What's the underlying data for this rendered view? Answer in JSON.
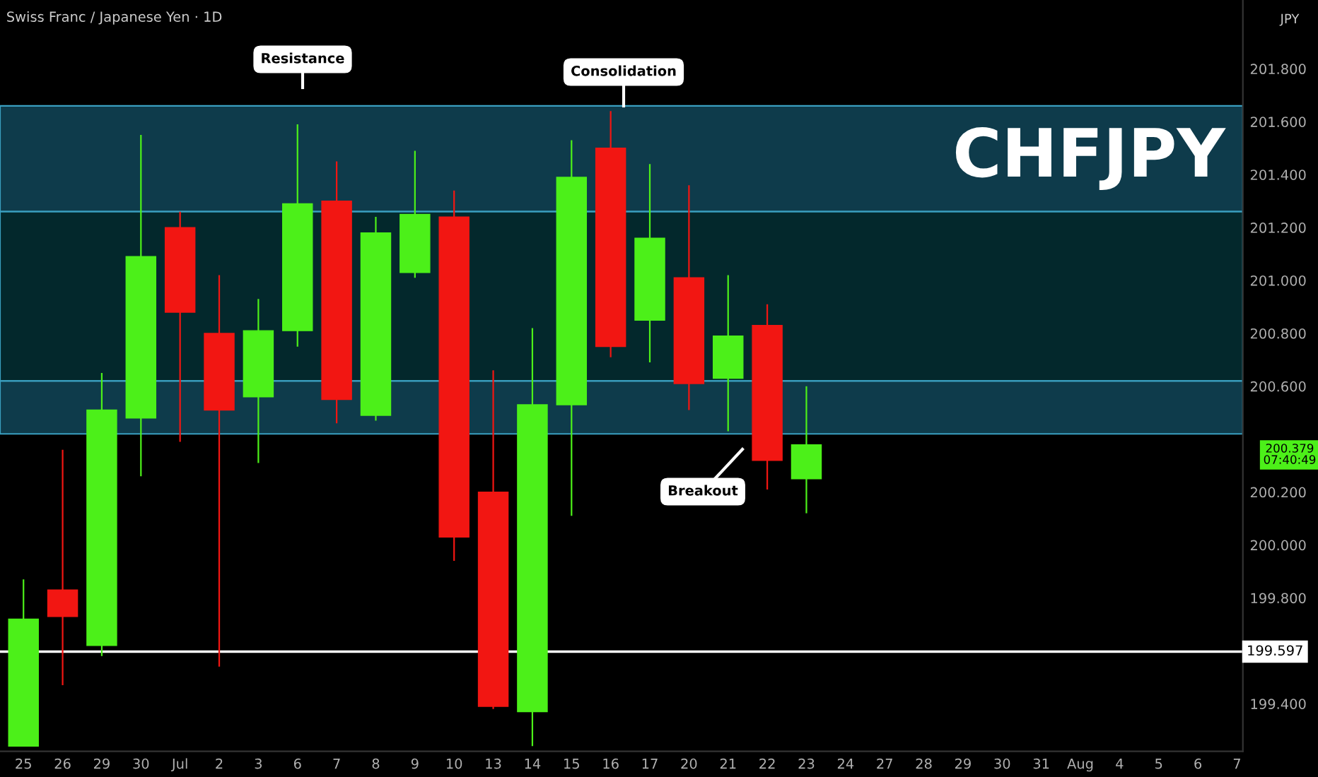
{
  "chart_data": {
    "type": "candlestick",
    "title": "Swiss Franc / Japanese Yen · 1D",
    "categories": [
      "25",
      "26",
      "29",
      "30",
      "Jul",
      "2",
      "3",
      "6",
      "7",
      "8",
      "9",
      "10",
      "13",
      "14",
      "15",
      "16",
      "17",
      "20",
      "21",
      "22",
      "23",
      "24",
      "27",
      "28",
      "29",
      "30",
      "31",
      "Aug",
      "4",
      "5",
      "6",
      "7"
    ],
    "ohlc": [
      [
        199.24,
        199.87,
        199.24,
        199.72
      ],
      [
        199.83,
        200.36,
        199.47,
        199.73
      ],
      [
        199.62,
        200.65,
        199.58,
        200.51
      ],
      [
        200.48,
        201.55,
        200.26,
        201.09
      ],
      [
        201.2,
        201.26,
        200.39,
        200.88
      ],
      [
        200.8,
        201.02,
        199.54,
        200.51
      ],
      [
        200.56,
        200.93,
        200.31,
        200.81
      ],
      [
        200.81,
        201.59,
        200.75,
        201.29
      ],
      [
        201.3,
        201.45,
        200.46,
        200.55
      ],
      [
        200.49,
        201.24,
        200.47,
        201.18
      ],
      [
        201.03,
        201.49,
        201.01,
        201.25
      ],
      [
        201.24,
        201.34,
        199.94,
        200.03
      ],
      [
        200.2,
        200.66,
        199.38,
        199.39
      ],
      [
        199.37,
        200.82,
        199.24,
        200.53
      ],
      [
        200.53,
        201.53,
        200.11,
        201.39
      ],
      [
        201.5,
        201.64,
        200.71,
        200.75
      ],
      [
        200.85,
        201.44,
        200.69,
        201.16
      ],
      [
        201.01,
        201.36,
        200.51,
        200.61
      ],
      [
        200.63,
        201.02,
        200.43,
        200.79
      ],
      [
        200.83,
        200.91,
        200.21,
        200.32
      ],
      [
        200.25,
        200.6,
        200.12,
        200.379
      ],
      null,
      null,
      null,
      null,
      null,
      null,
      null,
      null,
      null,
      null,
      null
    ],
    "colors": [
      "#4cf019",
      "#f21612",
      "#4cf019",
      "#4cf019",
      "#f21612",
      "#f21612",
      "#4cf019",
      "#4cf019",
      "#f21612",
      "#4cf019",
      "#4cf019",
      "#f21612",
      "#f21612",
      "#4cf019",
      "#4cf019",
      "#f21612",
      "#4cf019",
      "#f21612",
      "#4cf019",
      "#f21612",
      "#4cf019",
      null,
      null,
      null,
      null,
      null,
      null,
      null,
      null,
      null,
      null,
      null
    ],
    "ylim": [
      199.22,
      202.06
    ],
    "yticks": [
      {
        "value": 199.4,
        "label": "199.400"
      },
      {
        "value": 199.8,
        "label": "199.800"
      },
      {
        "value": 200.0,
        "label": "200.000"
      },
      {
        "value": 200.2,
        "label": "200.200"
      },
      {
        "value": 200.6,
        "label": "200.600"
      },
      {
        "value": 200.8,
        "label": "200.800"
      },
      {
        "value": 201.0,
        "label": "201.000"
      },
      {
        "value": 201.2,
        "label": "201.200"
      },
      {
        "value": 201.4,
        "label": "201.400"
      },
      {
        "value": 201.6,
        "label": "201.600"
      },
      {
        "value": 201.8,
        "label": "201.800"
      }
    ],
    "bands": [
      {
        "axis": "y",
        "from": 201.26,
        "to": 201.66,
        "color": "#0e3b4b"
      },
      {
        "axis": "y",
        "from": 200.62,
        "to": 201.26,
        "color": "#03282c"
      },
      {
        "axis": "y",
        "from": 200.42,
        "to": 200.62,
        "color": "#0e3b4b"
      }
    ],
    "ref_lines": [
      {
        "axis": "y",
        "value": 199.597,
        "label": "199.597",
        "color": "#ffffff"
      }
    ],
    "annotations": [
      "Resistance",
      "Consolidation",
      "Breakout",
      "200.379\n07:40:49",
      "CHFJPY",
      "JPY"
    ],
    "grid": false
  }
}
